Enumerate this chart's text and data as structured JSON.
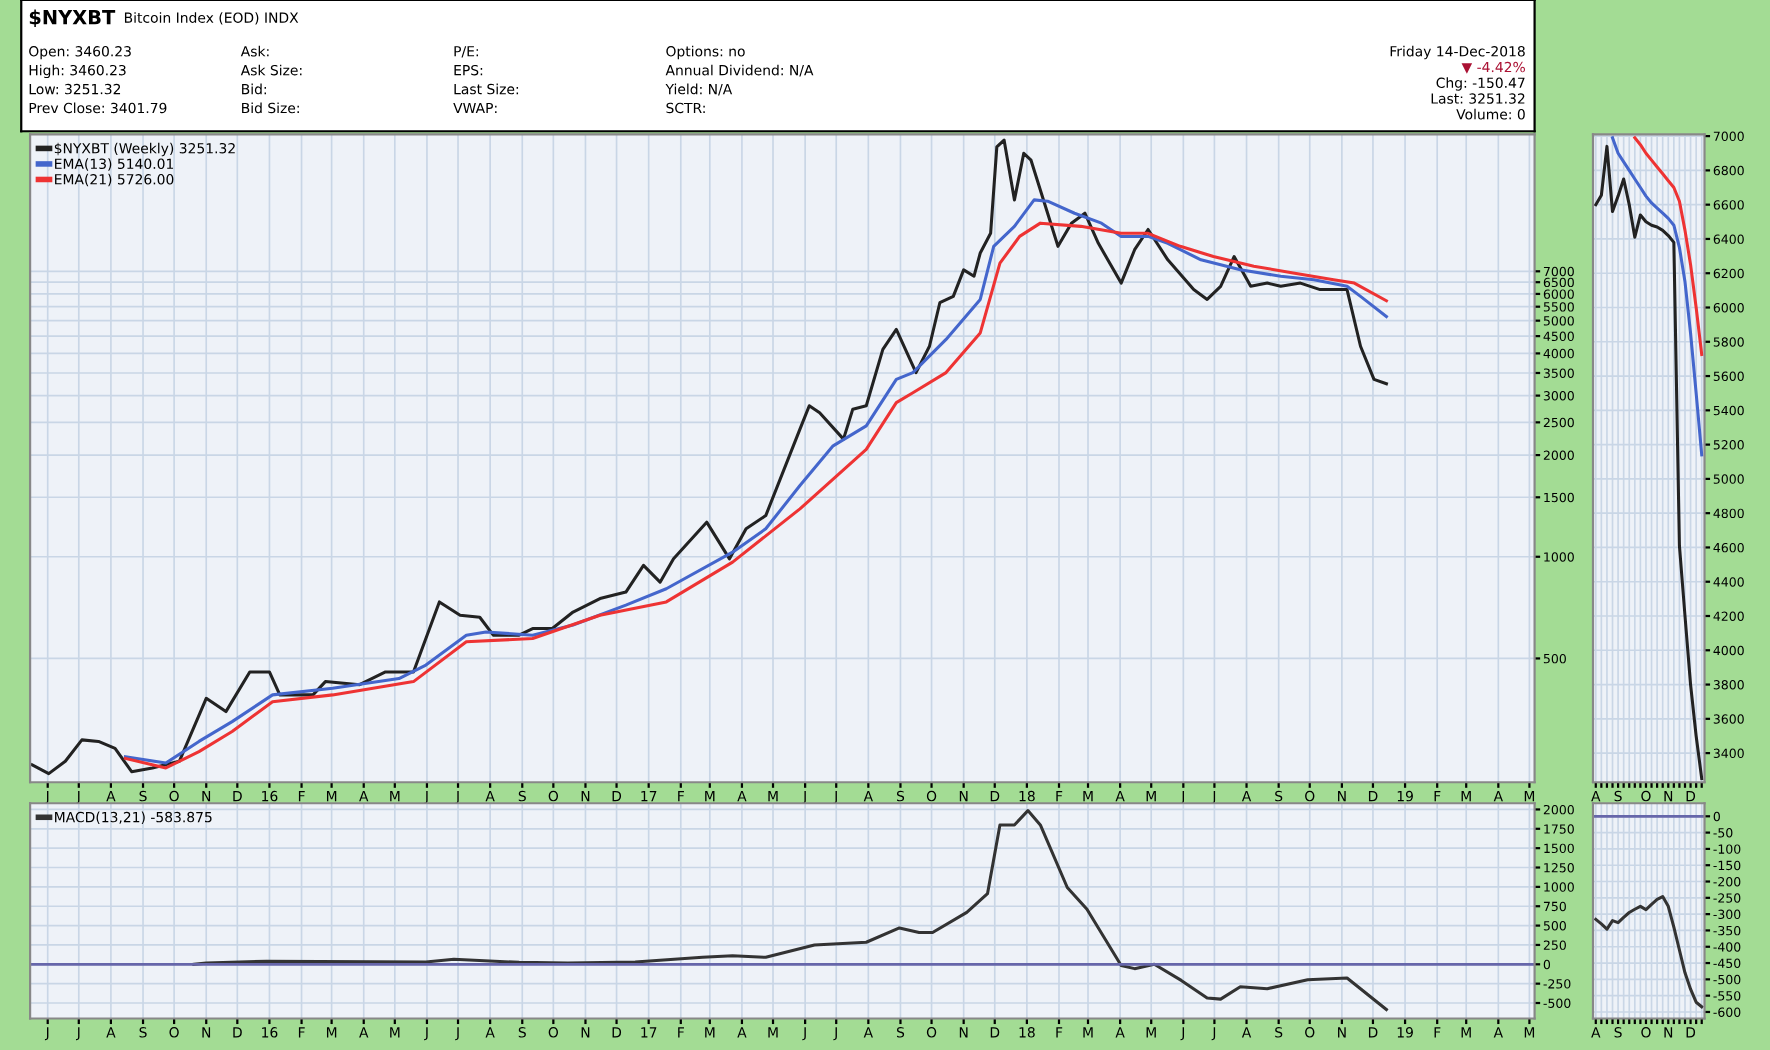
{
  "chart_data": [
    {
      "type": "line",
      "title": "$NYXBT",
      "subtitle": "Bitcoin Index (EOD) INDX",
      "log": true,
      "grid": true,
      "legend": "top left",
      "annotations": [
        "Open: 3460.23",
        "High: 3460.23",
        "Low: 3251.32",
        "Prev Close: 3401.79",
        "Ask:",
        "Ask Size:",
        "Bid:",
        "Bid Size:",
        "P/E:",
        "EPS:",
        "Last Size:",
        "VWAP:",
        "Options: no",
        "Annual Dividend: N/A",
        "Yield: N/A",
        "SCTR:",
        "Friday 14-Dec-2018",
        "▼ -4.42%",
        "Chg: -150.47",
        "Last: 3251.32",
        "Volume: 0"
      ],
      "xlim": [
        "2015-05-15",
        "2019-05-06"
      ],
      "ylim": [
        215,
        17800
      ],
      "yticks": [
        500,
        1000,
        1500,
        2000,
        2500,
        3000,
        3500,
        4000,
        4500,
        5000,
        5500,
        6000,
        6500,
        7000
      ],
      "xticks": [
        {
          "value": "2015-06-01",
          "label": "J"
        },
        {
          "value": "2015-07-01",
          "label": "J"
        },
        {
          "value": "2015-08-01",
          "label": "A"
        },
        {
          "value": "2015-09-01",
          "label": "S"
        },
        {
          "value": "2015-10-01",
          "label": "O"
        },
        {
          "value": "2015-11-01",
          "label": "N"
        },
        {
          "value": "2015-12-01",
          "label": "D"
        },
        {
          "value": "2016-01-01",
          "label": "16"
        },
        {
          "value": "2016-02-01",
          "label": "F"
        },
        {
          "value": "2016-03-01",
          "label": "M"
        },
        {
          "value": "2016-04-01",
          "label": "A"
        },
        {
          "value": "2016-05-01",
          "label": "M"
        },
        {
          "value": "2016-06-01",
          "label": "J"
        },
        {
          "value": "2016-07-01",
          "label": "J"
        },
        {
          "value": "2016-08-01",
          "label": "A"
        },
        {
          "value": "2016-09-01",
          "label": "S"
        },
        {
          "value": "2016-10-01",
          "label": "O"
        },
        {
          "value": "2016-11-01",
          "label": "N"
        },
        {
          "value": "2016-12-01",
          "label": "D"
        },
        {
          "value": "2017-01-01",
          "label": "17"
        },
        {
          "value": "2017-02-01",
          "label": "F"
        },
        {
          "value": "2017-03-01",
          "label": "M"
        },
        {
          "value": "2017-04-01",
          "label": "A"
        },
        {
          "value": "2017-05-01",
          "label": "M"
        },
        {
          "value": "2017-06-01",
          "label": "J"
        },
        {
          "value": "2017-07-01",
          "label": "J"
        },
        {
          "value": "2017-08-01",
          "label": "A"
        },
        {
          "value": "2017-09-01",
          "label": "S"
        },
        {
          "value": "2017-10-01",
          "label": "O"
        },
        {
          "value": "2017-11-01",
          "label": "N"
        },
        {
          "value": "2017-12-01",
          "label": "D"
        },
        {
          "value": "2018-01-01",
          "label": "18"
        },
        {
          "value": "2018-02-01",
          "label": "F"
        },
        {
          "value": "2018-03-01",
          "label": "M"
        },
        {
          "value": "2018-04-01",
          "label": "A"
        },
        {
          "value": "2018-05-01",
          "label": "M"
        },
        {
          "value": "2018-06-01",
          "label": "J"
        },
        {
          "value": "2018-07-01",
          "label": "J"
        },
        {
          "value": "2018-08-01",
          "label": "A"
        },
        {
          "value": "2018-09-01",
          "label": "S"
        },
        {
          "value": "2018-10-01",
          "label": "O"
        },
        {
          "value": "2018-11-01",
          "label": "N"
        },
        {
          "value": "2018-12-01",
          "label": "D"
        },
        {
          "value": "2019-01-01",
          "label": "19"
        },
        {
          "value": "2019-02-01",
          "label": "F"
        },
        {
          "value": "2019-03-01",
          "label": "M"
        },
        {
          "value": "2019-04-01",
          "label": "A"
        },
        {
          "value": "2019-05-01",
          "label": "M"
        }
      ],
      "series": [
        {
          "name": "$NYXBT (Weekly) 3251.32",
          "color": "#222222",
          "x": [
            "2015-05-17",
            "2015-06-02",
            "2015-06-18",
            "2015-07-04",
            "2015-07-20",
            "2015-08-05",
            "2015-08-21",
            "2015-09-10",
            "2015-10-06",
            "2015-11-01",
            "2015-11-20",
            "2015-12-13",
            "2016-01-01",
            "2016-01-11",
            "2016-02-12",
            "2016-02-24",
            "2016-03-28",
            "2016-04-22",
            "2016-05-19",
            "2016-06-13",
            "2016-07-03",
            "2016-07-22",
            "2016-08-04",
            "2016-08-29",
            "2016-09-11",
            "2016-09-30",
            "2016-10-20",
            "2016-11-15",
            "2016-12-10",
            "2016-12-27",
            "2017-01-12",
            "2017-01-25",
            "2017-02-26",
            "2017-03-20",
            "2017-04-05",
            "2017-04-24",
            "2017-05-27",
            "2017-06-05",
            "2017-06-15",
            "2017-07-08",
            "2017-07-17",
            "2017-07-30",
            "2017-08-15",
            "2017-08-28",
            "2017-09-16",
            "2017-09-29",
            "2017-10-09",
            "2017-10-22",
            "2017-11-01",
            "2017-11-11",
            "2017-11-17",
            "2017-11-27",
            "2017-12-03",
            "2017-12-10",
            "2017-12-20",
            "2017-12-29",
            "2018-01-05",
            "2018-01-31",
            "2018-02-13",
            "2018-02-26",
            "2018-03-11",
            "2018-04-02",
            "2018-04-15",
            "2018-04-28",
            "2018-05-17",
            "2018-06-11",
            "2018-06-24",
            "2018-07-07",
            "2018-07-20",
            "2018-08-05",
            "2018-08-21",
            "2018-09-03",
            "2018-09-22",
            "2018-10-11",
            "2018-11-06",
            "2018-11-19",
            "2018-12-02",
            "2018-12-14"
          ],
          "values": [
            242,
            228,
            248,
            287,
            284,
            271,
            231,
            237,
            248,
            381,
            348,
            456,
            456,
            390,
            390,
            427,
            418,
            456,
            456,
            735,
            671,
            662,
            586,
            586,
            613,
            613,
            686,
            752,
            786,
            943,
            841,
            986,
            1266,
            986,
            1210,
            1324,
            2387,
            2800,
            2670,
            2230,
            2735,
            2800,
            4110,
            4710,
            3510,
            4200,
            5650,
            5900,
            7070,
            6770,
            7930,
            9070,
            16340,
            17130,
            11390,
            15650,
            14930,
            8300,
            9720,
            10400,
            8470,
            6460,
            8110,
            9310,
            7570,
            6180,
            5780,
            6320,
            7740,
            6320,
            6460,
            6320,
            6460,
            6180,
            6180,
            4200,
            3350,
            3251.32
          ]
        },
        {
          "name": "EMA(13) 5140.01",
          "color": "#4466cc",
          "x": [
            "2015-08-15",
            "2015-09-23",
            "2015-10-25",
            "2015-11-26",
            "2016-01-04",
            "2016-03-02",
            "2016-05-05",
            "2016-05-31",
            "2016-07-09",
            "2016-07-28",
            "2016-09-11",
            "2016-10-20",
            "2016-12-10",
            "2017-01-18",
            "2017-03-23",
            "2017-04-24",
            "2017-05-27",
            "2017-06-28",
            "2017-07-30",
            "2017-08-28",
            "2017-09-13",
            "2017-10-15",
            "2017-11-17",
            "2017-11-30",
            "2017-12-20",
            "2018-01-08",
            "2018-01-21",
            "2018-02-16",
            "2018-03-14",
            "2018-04-02",
            "2018-04-28",
            "2018-05-17",
            "2018-06-18",
            "2018-07-26",
            "2018-09-03",
            "2018-10-05",
            "2018-11-06",
            "2018-11-19",
            "2018-12-14"
          ],
          "values": [
            256,
            245,
            284,
            325,
            390,
            408,
            436,
            478,
            586,
            599,
            586,
            628,
            719,
            804,
            1032,
            1210,
            1625,
            2130,
            2440,
            3350,
            3510,
            4400,
            5780,
            8300,
            9510,
            11390,
            11290,
            10400,
            9720,
            8880,
            8880,
            8470,
            7570,
            7070,
            6770,
            6610,
            6320,
            5900,
            5140.01
          ]
        },
        {
          "name": "EMA(21) 5726.00",
          "color": "#ee3333",
          "x": [
            "2015-08-15",
            "2015-09-23",
            "2015-10-25",
            "2015-11-26",
            "2016-01-04",
            "2016-03-02",
            "2016-05-19",
            "2016-07-09",
            "2016-09-11",
            "2016-11-15",
            "2017-01-18",
            "2017-03-23",
            "2017-05-27",
            "2017-07-30",
            "2017-08-28",
            "2017-09-13",
            "2017-10-15",
            "2017-11-17",
            "2017-12-06",
            "2017-12-25",
            "2018-01-14",
            "2018-02-22",
            "2018-04-02",
            "2018-04-28",
            "2018-05-29",
            "2018-06-30",
            "2018-08-08",
            "2018-09-15",
            "2018-10-24",
            "2018-11-13",
            "2018-12-14"
          ],
          "values": [
            253,
            237,
            265,
            304,
            372,
            390,
            427,
            560,
            573,
            671,
            735,
            964,
            1386,
            2080,
            2860,
            3060,
            3510,
            4600,
            7400,
            8880,
            9720,
            9510,
            9070,
            9070,
            8300,
            7740,
            7250,
            6920,
            6610,
            6460,
            5726.0
          ]
        }
      ]
    },
    {
      "type": "line",
      "grid": true,
      "legend": "top left",
      "xlim": [
        "2015-05-15",
        "2019-05-06"
      ],
      "ylim": [
        -700,
        2080
      ],
      "yticks": [
        -500,
        -250,
        0,
        250,
        500,
        750,
        1000,
        1250,
        1500,
        1750,
        2000
      ],
      "xticks": [
        {
          "value": "2015-06-01",
          "label": "J"
        },
        {
          "value": "2015-07-01",
          "label": "J"
        },
        {
          "value": "2015-08-01",
          "label": "A"
        },
        {
          "value": "2015-09-01",
          "label": "S"
        },
        {
          "value": "2015-10-01",
          "label": "O"
        },
        {
          "value": "2015-11-01",
          "label": "N"
        },
        {
          "value": "2015-12-01",
          "label": "D"
        },
        {
          "value": "2016-01-01",
          "label": "16"
        },
        {
          "value": "2016-02-01",
          "label": "F"
        },
        {
          "value": "2016-03-01",
          "label": "M"
        },
        {
          "value": "2016-04-01",
          "label": "A"
        },
        {
          "value": "2016-05-01",
          "label": "M"
        },
        {
          "value": "2016-06-01",
          "label": "J"
        },
        {
          "value": "2016-07-01",
          "label": "J"
        },
        {
          "value": "2016-08-01",
          "label": "A"
        },
        {
          "value": "2016-09-01",
          "label": "S"
        },
        {
          "value": "2016-10-01",
          "label": "O"
        },
        {
          "value": "2016-11-01",
          "label": "N"
        },
        {
          "value": "2016-12-01",
          "label": "D"
        },
        {
          "value": "2017-01-01",
          "label": "17"
        },
        {
          "value": "2017-02-01",
          "label": "F"
        },
        {
          "value": "2017-03-01",
          "label": "M"
        },
        {
          "value": "2017-04-01",
          "label": "A"
        },
        {
          "value": "2017-05-01",
          "label": "M"
        },
        {
          "value": "2017-06-01",
          "label": "J"
        },
        {
          "value": "2017-07-01",
          "label": "J"
        },
        {
          "value": "2017-08-01",
          "label": "A"
        },
        {
          "value": "2017-09-01",
          "label": "S"
        },
        {
          "value": "2017-10-01",
          "label": "O"
        },
        {
          "value": "2017-11-01",
          "label": "N"
        },
        {
          "value": "2017-12-01",
          "label": "D"
        },
        {
          "value": "2018-01-01",
          "label": "18"
        },
        {
          "value": "2018-02-01",
          "label": "F"
        },
        {
          "value": "2018-03-01",
          "label": "M"
        },
        {
          "value": "2018-04-01",
          "label": "A"
        },
        {
          "value": "2018-05-01",
          "label": "M"
        },
        {
          "value": "2018-06-01",
          "label": "J"
        },
        {
          "value": "2018-07-01",
          "label": "J"
        },
        {
          "value": "2018-08-01",
          "label": "A"
        },
        {
          "value": "2018-09-01",
          "label": "S"
        },
        {
          "value": "2018-10-01",
          "label": "O"
        },
        {
          "value": "2018-11-01",
          "label": "N"
        },
        {
          "value": "2018-12-01",
          "label": "D"
        },
        {
          "value": "2019-01-01",
          "label": "19"
        },
        {
          "value": "2019-02-01",
          "label": "F"
        },
        {
          "value": "2019-03-01",
          "label": "M"
        },
        {
          "value": "2019-04-01",
          "label": "A"
        },
        {
          "value": "2019-05-01",
          "label": "M"
        }
      ],
      "ref_lines": [
        {
          "axis": "y",
          "value": 0,
          "color": "#6666aa"
        }
      ],
      "series": [
        {
          "name": "MACD(13,21) -583.875",
          "color": "#333333",
          "x": [
            "2015-10-20",
            "2015-11-01",
            "2015-12-29",
            "2016-05-31",
            "2016-06-27",
            "2016-08-29",
            "2016-10-15",
            "2016-12-19",
            "2017-02-22",
            "2017-03-23",
            "2017-04-24",
            "2017-06-10",
            "2017-07-30",
            "2017-08-31",
            "2017-09-19",
            "2017-10-02",
            "2017-11-04",
            "2017-11-24",
            "2017-12-06",
            "2017-12-20",
            "2018-01-02",
            "2018-01-14",
            "2018-02-09",
            "2018-02-28",
            "2018-04-02",
            "2018-04-15",
            "2018-05-04",
            "2018-05-30",
            "2018-06-24",
            "2018-07-07",
            "2018-07-26",
            "2018-08-21",
            "2018-09-29",
            "2018-11-06",
            "2018-12-14"
          ],
          "values": [
            0,
            15,
            40,
            30,
            65,
            25,
            15,
            30,
            90,
            110,
            90,
            250,
            285,
            470,
            411,
            411,
            670,
            912,
            1800,
            1800,
            1985,
            1800,
            992,
            711,
            -15,
            -56,
            0,
            -208,
            -435,
            -450,
            -290,
            -315,
            -200,
            -177,
            -583.875
          ]
        }
      ]
    },
    {
      "type": "line",
      "grid": true,
      "ylim": [
        3230,
        7010
      ],
      "yticks": [
        3400,
        3600,
        3800,
        4000,
        4200,
        4400,
        4600,
        4800,
        5000,
        5200,
        5400,
        5600,
        5800,
        6000,
        6200,
        6400,
        6600,
        6800,
        7000
      ],
      "categories": [
        "A",
        null,
        null,
        null,
        "S",
        null,
        null,
        null,
        null,
        "O",
        null,
        null,
        null,
        "N",
        null,
        null,
        null,
        "D",
        null,
        null
      ],
      "series": [
        {
          "color": "#222222",
          "values": [
            6600,
            6655,
            6940,
            6560,
            6650,
            6750,
            6600,
            6410,
            6540,
            6500,
            6480,
            6470,
            6450,
            6420,
            6380,
            4610,
            4200,
            3800,
            3500,
            3251
          ]
        },
        {
          "color": "#4466cc",
          "values": [
            null,
            null,
            null,
            6990,
            6900,
            6850,
            6800,
            6750,
            6700,
            6650,
            6610,
            6580,
            6550,
            6520,
            6480,
            6350,
            6150,
            5850,
            5500,
            5140
          ]
        },
        {
          "color": "#ee3333",
          "values": [
            null,
            null,
            null,
            null,
            null,
            null,
            null,
            6990,
            6950,
            6900,
            6860,
            6820,
            6780,
            6740,
            6700,
            6620,
            6450,
            6250,
            6000,
            5726
          ]
        }
      ]
    },
    {
      "type": "line",
      "grid": true,
      "ylim": [
        -620,
        40
      ],
      "yticks": [
        -600,
        -550,
        -500,
        -450,
        -400,
        -350,
        -300,
        -250,
        -200,
        -150,
        -100,
        -50,
        0
      ],
      "categories": [
        "A",
        null,
        null,
        null,
        "S",
        null,
        null,
        null,
        null,
        "O",
        null,
        null,
        null,
        "N",
        null,
        null,
        null,
        "D",
        null,
        null
      ],
      "ref_lines": [
        {
          "axis": "y",
          "value": 0,
          "color": "#6666aa"
        }
      ],
      "series": [
        {
          "color": "#333333",
          "values": [
            -316,
            -330,
            -346,
            -320,
            -326,
            -310,
            -295,
            -285,
            -276,
            -286,
            -270,
            -255,
            -246,
            -276,
            -340,
            -410,
            -480,
            -530,
            -570,
            -584
          ]
        }
      ]
    }
  ]
}
